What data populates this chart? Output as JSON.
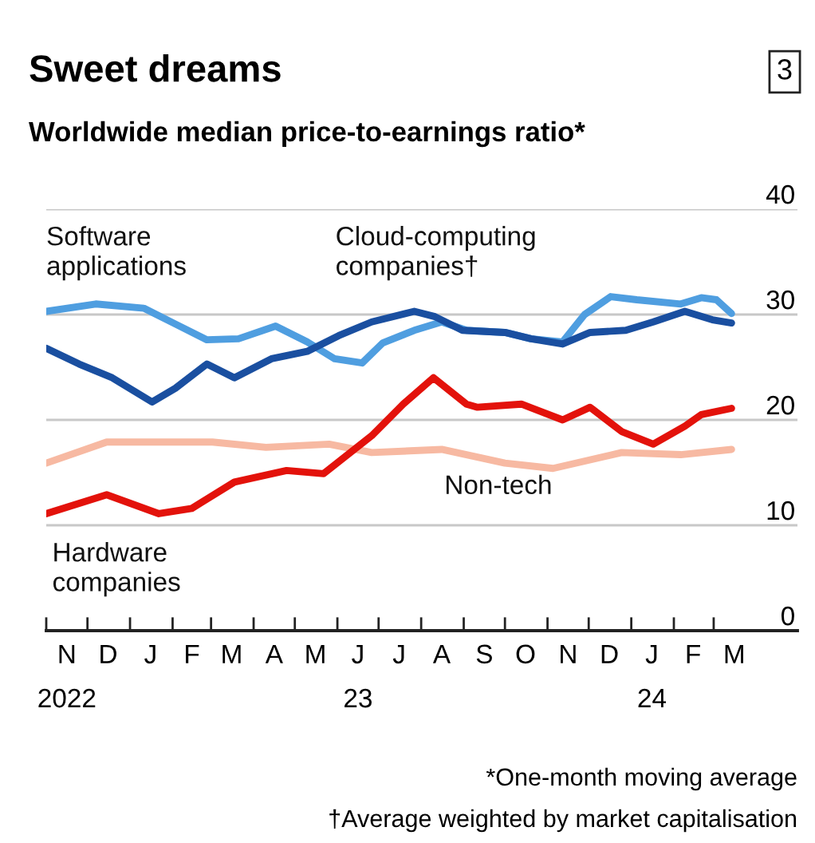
{
  "chart_data": {
    "type": "line",
    "title": "Sweet dreams",
    "subtitle": "Worldwide median price-to-earnings ratio*",
    "annotations": [
      "3",
      "*One-month moving average",
      "†Average weighted by market capitalisation"
    ],
    "series": [
      {
        "name": "Software\napplications",
        "color": "#4f9ee0",
        "x": [
          "2022-11-01",
          "2022-12-07",
          "2023-01-11",
          "2023-02-03",
          "2023-02-26",
          "2023-03-21",
          "2023-04-17",
          "2023-05-10",
          "2023-05-30",
          "2023-06-19",
          "2023-07-04",
          "2023-07-27",
          "2023-08-16",
          "2023-09-03",
          "2023-10-01",
          "2023-10-20",
          "2023-11-12",
          "2023-11-28",
          "2023-12-17",
          "2024-01-05",
          "2024-02-06",
          "2024-02-21",
          "2024-03-03",
          "2024-03-14"
        ],
        "values": [
          30.3,
          31.0,
          30.6,
          29.1,
          27.6,
          27.7,
          28.9,
          27.4,
          25.8,
          25.4,
          27.3,
          28.5,
          29.3,
          28.5,
          28.3,
          27.7,
          27.4,
          30.0,
          31.7,
          31.4,
          31.0,
          31.6,
          31.4,
          30.1
        ]
      },
      {
        "name": "Cloud-computing\ncompanies†",
        "color": "#1a4fa0",
        "x": [
          "2022-11-01",
          "2022-11-25",
          "2022-12-19",
          "2023-01-17",
          "2023-02-03",
          "2023-02-26",
          "2023-03-18",
          "2023-04-14",
          "2023-05-10",
          "2023-06-02",
          "2023-06-26",
          "2023-07-27",
          "2023-08-11",
          "2023-08-31",
          "2023-10-01",
          "2023-10-20",
          "2023-11-12",
          "2023-12-02",
          "2023-12-28",
          "2024-01-17",
          "2024-02-09",
          "2024-02-29",
          "2024-03-14"
        ],
        "values": [
          26.8,
          25.3,
          24.0,
          21.7,
          23.0,
          25.3,
          24.0,
          25.8,
          26.5,
          28.0,
          29.3,
          30.3,
          29.8,
          28.5,
          28.3,
          27.7,
          27.2,
          28.3,
          28.5,
          29.3,
          30.3,
          29.5,
          29.2
        ]
      },
      {
        "name": "Non-tech",
        "color": "#f7b9a2",
        "x": [
          "2022-11-01",
          "2022-12-15",
          "2023-03-02",
          "2023-04-10",
          "2023-05-26",
          "2023-06-26",
          "2023-08-16",
          "2023-10-01",
          "2023-11-05",
          "2023-12-25",
          "2024-02-06",
          "2024-03-14"
        ],
        "values": [
          15.9,
          17.9,
          17.9,
          17.4,
          17.7,
          16.9,
          17.2,
          15.9,
          15.4,
          16.9,
          16.7,
          17.2
        ]
      },
      {
        "name": "Hardware\ncompanies",
        "color": "#e3120b",
        "x": [
          "2022-11-01",
          "2022-12-15",
          "2023-01-22",
          "2023-02-15",
          "2023-03-18",
          "2023-04-25",
          "2023-05-22",
          "2023-06-26",
          "2023-07-19",
          "2023-08-10",
          "2023-09-03",
          "2023-09-11",
          "2023-10-13",
          "2023-11-12",
          "2023-12-02",
          "2023-12-25",
          "2024-01-17",
          "2024-02-09",
          "2024-02-21",
          "2024-03-14"
        ],
        "values": [
          11.1,
          12.9,
          11.1,
          11.6,
          14.1,
          15.2,
          14.9,
          18.5,
          21.5,
          24.0,
          21.5,
          21.2,
          21.5,
          20.0,
          21.2,
          18.9,
          17.7,
          19.4,
          20.5,
          21.1
        ]
      }
    ],
    "xlim": [
      "2022-11-01",
      "2024-05-01"
    ],
    "xticks": [
      {
        "value": "2022-11-01",
        "label": null
      },
      {
        "value": "2022-12-01",
        "label": null
      },
      {
        "value": "2023-01-01",
        "label": null
      },
      {
        "value": "2023-02-01",
        "label": null
      },
      {
        "value": "2023-03-01",
        "label": null
      },
      {
        "value": "2023-04-01",
        "label": null
      },
      {
        "value": "2023-05-01",
        "label": null
      },
      {
        "value": "2023-06-01",
        "label": null
      },
      {
        "value": "2023-07-01",
        "label": null
      },
      {
        "value": "2023-08-01",
        "label": null
      },
      {
        "value": "2023-09-01",
        "label": null
      },
      {
        "value": "2023-10-01",
        "label": null
      },
      {
        "value": "2023-11-01",
        "label": null
      },
      {
        "value": "2023-12-01",
        "label": null
      },
      {
        "value": "2024-01-01",
        "label": null
      },
      {
        "value": "2024-02-01",
        "label": null
      },
      {
        "value": "2024-03-01",
        "label": null
      },
      {
        "value": "2022-11-16",
        "label": "N\n2022"
      },
      {
        "value": "2022-12-16",
        "label": "D"
      },
      {
        "value": "2023-01-16",
        "label": "J"
      },
      {
        "value": "2023-02-15",
        "label": "F"
      },
      {
        "value": "2023-03-16",
        "label": "M"
      },
      {
        "value": "2023-04-16",
        "label": "A"
      },
      {
        "value": "2023-05-16",
        "label": "M"
      },
      {
        "value": "2023-06-16",
        "label": "J\n23"
      },
      {
        "value": "2023-07-16",
        "label": "J"
      },
      {
        "value": "2023-08-16",
        "label": "A"
      },
      {
        "value": "2023-09-16",
        "label": "S"
      },
      {
        "value": "2023-10-16",
        "label": "O"
      },
      {
        "value": "2023-11-16",
        "label": "N"
      },
      {
        "value": "2023-12-16",
        "label": "D"
      },
      {
        "value": "2024-01-16",
        "label": "J\n24"
      },
      {
        "value": "2024-02-15",
        "label": "F"
      },
      {
        "value": "2024-03-16",
        "label": "M"
      }
    ],
    "ylim": [
      0,
      40
    ],
    "yticks": [
      0,
      10,
      20,
      30,
      40
    ],
    "grid": "y",
    "legend": false,
    "line_style": "solid"
  }
}
